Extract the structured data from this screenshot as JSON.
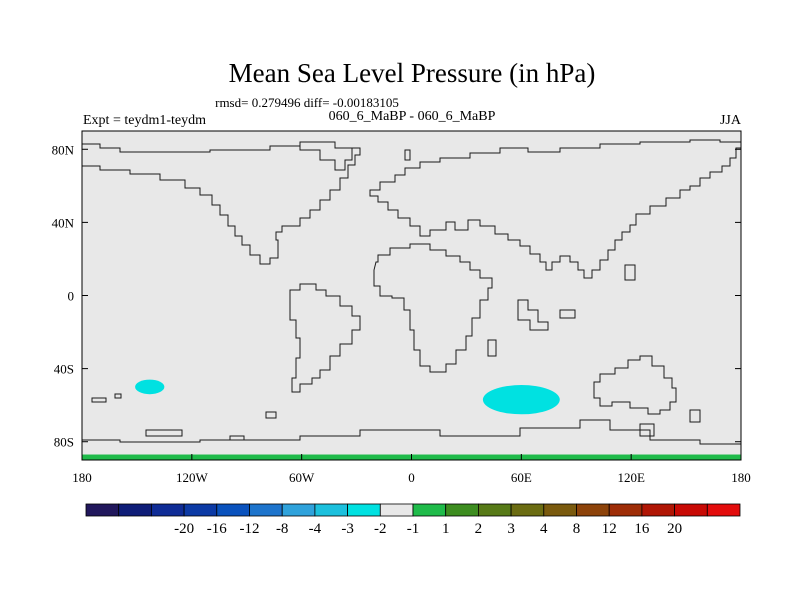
{
  "chart_data": {
    "type": "heatmap",
    "title": "Mean Sea Level Pressure (in hPa)",
    "stats_line": "rmsd= 0.279496 diff= -0.00183105",
    "subtitle": "060_6_MaBP - 060_6_MaBP",
    "left_label": "Expt = teydm1-teydm",
    "right_label": "JJA",
    "xlim": [
      -180,
      180
    ],
    "ylim": [
      -90,
      90
    ],
    "x_ticks": [
      {
        "value": -180,
        "label": "180"
      },
      {
        "value": -120,
        "label": "120W"
      },
      {
        "value": -60,
        "label": "60W"
      },
      {
        "value": 0,
        "label": "0"
      },
      {
        "value": 60,
        "label": "60E"
      },
      {
        "value": 120,
        "label": "120E"
      },
      {
        "value": 180,
        "label": "180"
      }
    ],
    "y_ticks": [
      {
        "value": 80,
        "label": "80N"
      },
      {
        "value": 40,
        "label": "40N"
      },
      {
        "value": 0,
        "label": "0"
      },
      {
        "value": -40,
        "label": "40S"
      },
      {
        "value": -80,
        "label": "80S"
      }
    ],
    "background_class": "-1 to 1",
    "anomalies": [
      {
        "name": "south-pacific-anomaly",
        "class": "-2 to -1",
        "lon": -143,
        "lat": -50,
        "lon_halfwidth": 8,
        "lat_halfwidth": 4
      },
      {
        "name": "south-indian-ocean-anomaly",
        "class": "-2 to -1",
        "lon": 60,
        "lat": -57,
        "lon_halfwidth": 21,
        "lat_halfwidth": 8
      },
      {
        "name": "antarctic-coast-anomaly",
        "class": "1 to 2",
        "lon": 0,
        "lat": -88.5,
        "lon_halfwidth": 180,
        "lat_halfwidth": 1.5
      }
    ],
    "colorbar": {
      "colors": [
        "#21175c",
        "#0f1d78",
        "#0f2c96",
        "#0c3aa5",
        "#0a52bd",
        "#1d74cc",
        "#2fa2db",
        "#1cc0dd",
        "#00e1e1",
        "#e8e8e8",
        "#1fbb4a",
        "#3d8d20",
        "#577a17",
        "#6b6c12",
        "#7a5a0e",
        "#8d430a",
        "#9e2d07",
        "#b01605",
        "#c80a05",
        "#e30c0c"
      ],
      "labels": [
        "-20",
        "-16",
        "-12",
        "-8",
        "-4",
        "-3",
        "-2",
        "-1",
        "1",
        "2",
        "3",
        "4",
        "8",
        "12",
        "16",
        "20"
      ]
    }
  }
}
